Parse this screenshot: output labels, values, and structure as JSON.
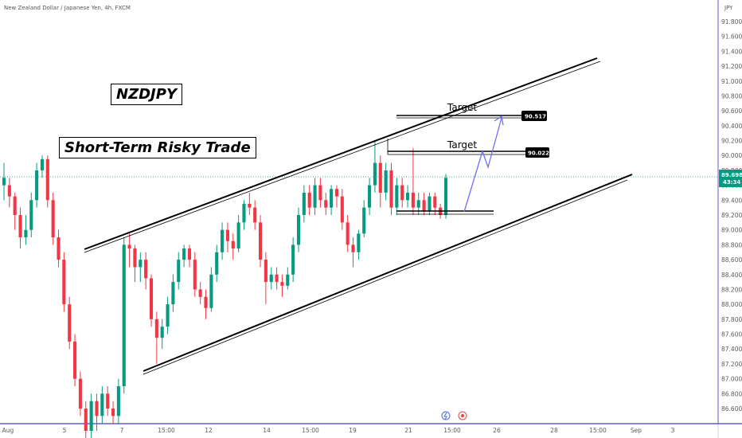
{
  "header": {
    "symbol_title": "New Zealand Dollar / Japanese Yen, 4h, FXCM",
    "currency": "JPY"
  },
  "annotations": {
    "pair": "NZDJPY",
    "trade": "Short-Term Risky Trade",
    "target_label": "Target"
  },
  "price_labels": {
    "target_high": "90.517",
    "target_low": "90.022",
    "current_price": "89.698",
    "countdown": "43:34"
  },
  "colors": {
    "up": "#089981",
    "down": "#f23645",
    "axis_line": "#3f3fd8",
    "projection": "#6f6ff0",
    "price_badge": "#089981",
    "label_bg": "#000000"
  },
  "icons": [
    "lightning-icon",
    "record-icon"
  ],
  "chart_data": {
    "type": "candlestick",
    "ylim": [
      86.4,
      92.0
    ],
    "y_ticks": [
      "91.800",
      "91.600",
      "91.400",
      "91.200",
      "91.000",
      "90.800",
      "90.600",
      "90.400",
      "90.200",
      "90.000",
      "89.800",
      "89.600",
      "89.400",
      "89.200",
      "89.000",
      "88.800",
      "88.600",
      "88.400",
      "88.200",
      "88.000",
      "87.800",
      "87.600",
      "87.400",
      "87.200",
      "87.000",
      "86.800",
      "86.600"
    ],
    "x_ticks": [
      "Aug",
      "5",
      "7",
      "15:00",
      "12",
      "14",
      "15:00",
      "19",
      "21",
      "15:00",
      "26",
      "28",
      "15:00",
      "Sep",
      "3"
    ],
    "candles": [
      [
        89.6,
        89.7,
        89.4,
        89.9
      ],
      [
        89.6,
        89.45,
        89.3,
        89.7
      ],
      [
        89.45,
        89.2,
        89.0,
        89.5
      ],
      [
        89.2,
        88.9,
        88.75,
        89.3
      ],
      [
        88.9,
        89.0,
        88.8,
        89.2
      ],
      [
        89.0,
        89.4,
        88.9,
        89.5
      ],
      [
        89.4,
        89.8,
        89.3,
        89.9
      ],
      [
        89.8,
        89.95,
        89.7,
        90.0
      ],
      [
        89.95,
        89.4,
        89.3,
        90.0
      ],
      [
        89.4,
        88.9,
        88.8,
        89.5
      ],
      [
        88.9,
        88.6,
        88.5,
        89.0
      ],
      [
        88.6,
        88.0,
        87.9,
        88.7
      ],
      [
        88.0,
        87.5,
        87.4,
        88.1
      ],
      [
        87.5,
        87.0,
        86.9,
        87.6
      ],
      [
        87.0,
        86.6,
        86.5,
        87.1
      ],
      [
        86.6,
        86.3,
        86.2,
        86.7
      ],
      [
        86.3,
        86.7,
        86.2,
        86.8
      ],
      [
        86.7,
        86.5,
        86.3,
        86.8
      ],
      [
        86.5,
        86.8,
        86.4,
        86.9
      ],
      [
        86.8,
        86.6,
        86.5,
        86.9
      ],
      [
        86.6,
        86.5,
        86.4,
        86.7
      ],
      [
        86.5,
        86.9,
        86.4,
        87.0
      ],
      [
        86.9,
        88.8,
        86.8,
        88.9
      ],
      [
        88.8,
        88.75,
        88.5,
        88.95
      ],
      [
        88.75,
        88.5,
        88.3,
        88.8
      ],
      [
        88.5,
        88.6,
        88.3,
        88.7
      ],
      [
        88.6,
        88.35,
        88.2,
        88.7
      ],
      [
        88.35,
        87.8,
        87.7,
        88.4
      ],
      [
        87.8,
        87.55,
        87.2,
        87.9
      ],
      [
        87.55,
        87.7,
        87.4,
        87.8
      ],
      [
        87.7,
        88.0,
        87.6,
        88.1
      ],
      [
        88.0,
        88.3,
        87.9,
        88.4
      ],
      [
        88.3,
        88.6,
        88.2,
        88.7
      ],
      [
        88.6,
        88.75,
        88.5,
        88.8
      ],
      [
        88.75,
        88.6,
        88.5,
        88.8
      ],
      [
        88.6,
        88.2,
        88.1,
        88.7
      ],
      [
        88.2,
        88.1,
        88.0,
        88.3
      ],
      [
        88.1,
        87.95,
        87.8,
        88.2
      ],
      [
        87.95,
        88.4,
        87.9,
        88.5
      ],
      [
        88.4,
        88.7,
        88.3,
        88.8
      ],
      [
        88.7,
        89.0,
        88.6,
        89.1
      ],
      [
        89.0,
        88.85,
        88.7,
        89.1
      ],
      [
        88.85,
        88.75,
        88.6,
        88.95
      ],
      [
        88.75,
        89.1,
        88.7,
        89.2
      ],
      [
        89.1,
        89.35,
        89.0,
        89.4
      ],
      [
        89.35,
        89.3,
        89.2,
        89.5
      ],
      [
        89.3,
        89.1,
        89.0,
        89.4
      ],
      [
        89.1,
        88.6,
        88.5,
        89.2
      ],
      [
        88.6,
        88.3,
        88.0,
        88.7
      ],
      [
        88.3,
        88.4,
        88.2,
        88.5
      ],
      [
        88.4,
        88.3,
        88.2,
        88.5
      ],
      [
        88.3,
        88.25,
        88.1,
        88.4
      ],
      [
        88.25,
        88.4,
        88.2,
        88.5
      ],
      [
        88.4,
        88.8,
        88.3,
        88.9
      ],
      [
        88.8,
        89.2,
        88.7,
        89.3
      ],
      [
        89.2,
        89.5,
        89.1,
        89.6
      ],
      [
        89.5,
        89.3,
        89.2,
        89.6
      ],
      [
        89.3,
        89.6,
        89.2,
        89.7
      ],
      [
        89.6,
        89.4,
        89.3,
        89.7
      ],
      [
        89.4,
        89.3,
        89.2,
        89.5
      ],
      [
        89.3,
        89.55,
        89.2,
        89.6
      ],
      [
        89.55,
        89.45,
        89.3,
        89.6
      ],
      [
        89.45,
        89.1,
        89.0,
        89.55
      ],
      [
        89.1,
        88.8,
        88.7,
        89.2
      ],
      [
        88.8,
        88.7,
        88.5,
        88.9
      ],
      [
        88.7,
        88.95,
        88.6,
        89.0
      ],
      [
        88.95,
        89.3,
        88.9,
        89.4
      ],
      [
        89.3,
        89.6,
        89.2,
        89.7
      ],
      [
        89.6,
        89.9,
        89.5,
        90.2
      ],
      [
        89.9,
        89.5,
        89.3,
        90.0
      ],
      [
        89.5,
        89.8,
        89.4,
        89.9
      ],
      [
        89.8,
        89.3,
        89.2,
        89.9
      ],
      [
        89.3,
        89.6,
        89.2,
        89.7
      ],
      [
        89.6,
        89.4,
        89.3,
        89.7
      ],
      [
        89.4,
        89.5,
        89.3,
        89.6
      ],
      [
        89.5,
        89.3,
        89.2,
        90.1
      ],
      [
        89.3,
        89.4,
        89.2,
        89.5
      ],
      [
        89.4,
        89.25,
        89.2,
        89.5
      ],
      [
        89.25,
        89.45,
        89.2,
        89.5
      ],
      [
        89.45,
        89.3,
        89.2,
        89.5
      ],
      [
        89.3,
        89.2,
        89.15,
        89.35
      ],
      [
        89.2,
        89.7,
        89.15,
        89.75
      ]
    ]
  }
}
